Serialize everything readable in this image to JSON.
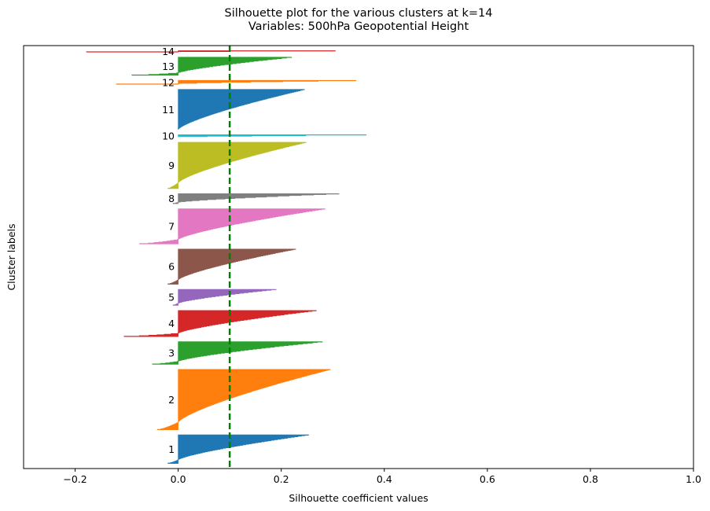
{
  "chart_data": {
    "type": "bar",
    "orientation": "horizontal",
    "title": "Silhouette plot for the various clusters at k=14",
    "subtitle": "Variables: 500hPa Geopotential Height",
    "xlabel": "Silhouette coefficient values",
    "ylabel": "Cluster labels",
    "xlim": [
      -0.3,
      1.0
    ],
    "xticks": [
      "−0.2",
      "0.0",
      "0.2",
      "0.4",
      "0.6",
      "0.8",
      "1.0"
    ],
    "xtick_values": [
      -0.2,
      0.0,
      0.2,
      0.4,
      0.6,
      0.8,
      1.0
    ],
    "grid": false,
    "reference_line": {
      "x": 0.1,
      "color": "#008000",
      "style": "dashed"
    },
    "clusters": [
      {
        "label": "1",
        "color": "#1f77b4",
        "size": 57,
        "max": 0.253,
        "min": -0.02
      },
      {
        "label": "2",
        "color": "#ff7f0e",
        "size": 120,
        "max": 0.295,
        "min": -0.04
      },
      {
        "label": "3",
        "color": "#2ca02c",
        "size": 45,
        "max": 0.28,
        "min": -0.05
      },
      {
        "label": "4",
        "color": "#d62728",
        "size": 52,
        "max": 0.268,
        "min": -0.105
      },
      {
        "label": "5",
        "color": "#9467bd",
        "size": 32,
        "max": 0.19,
        "min": -0.01
      },
      {
        "label": "6",
        "color": "#8c564b",
        "size": 70,
        "max": 0.228,
        "min": -0.02
      },
      {
        "label": "7",
        "color": "#e377c2",
        "size": 70,
        "max": 0.285,
        "min": -0.075
      },
      {
        "label": "8",
        "color": "#7f7f7f",
        "size": 20,
        "max": 0.312,
        "min": -0.01
      },
      {
        "label": "9",
        "color": "#bcbd22",
        "size": 92,
        "max": 0.248,
        "min": -0.02
      },
      {
        "label": "10",
        "color": "#17becf",
        "size": 5,
        "max": 0.365,
        "min": 0.0
      },
      {
        "label": "11",
        "color": "#1f77b4",
        "size": 80,
        "max": 0.245,
        "min": 0.0
      },
      {
        "label": "12",
        "color": "#ff7f0e",
        "size": 8,
        "max": 0.345,
        "min": -0.12
      },
      {
        "label": "13",
        "color": "#2ca02c",
        "size": 36,
        "max": 0.22,
        "min": -0.09
      },
      {
        "label": "14",
        "color": "#d62728",
        "size": 3,
        "max": 0.305,
        "min": -0.178
      }
    ]
  }
}
